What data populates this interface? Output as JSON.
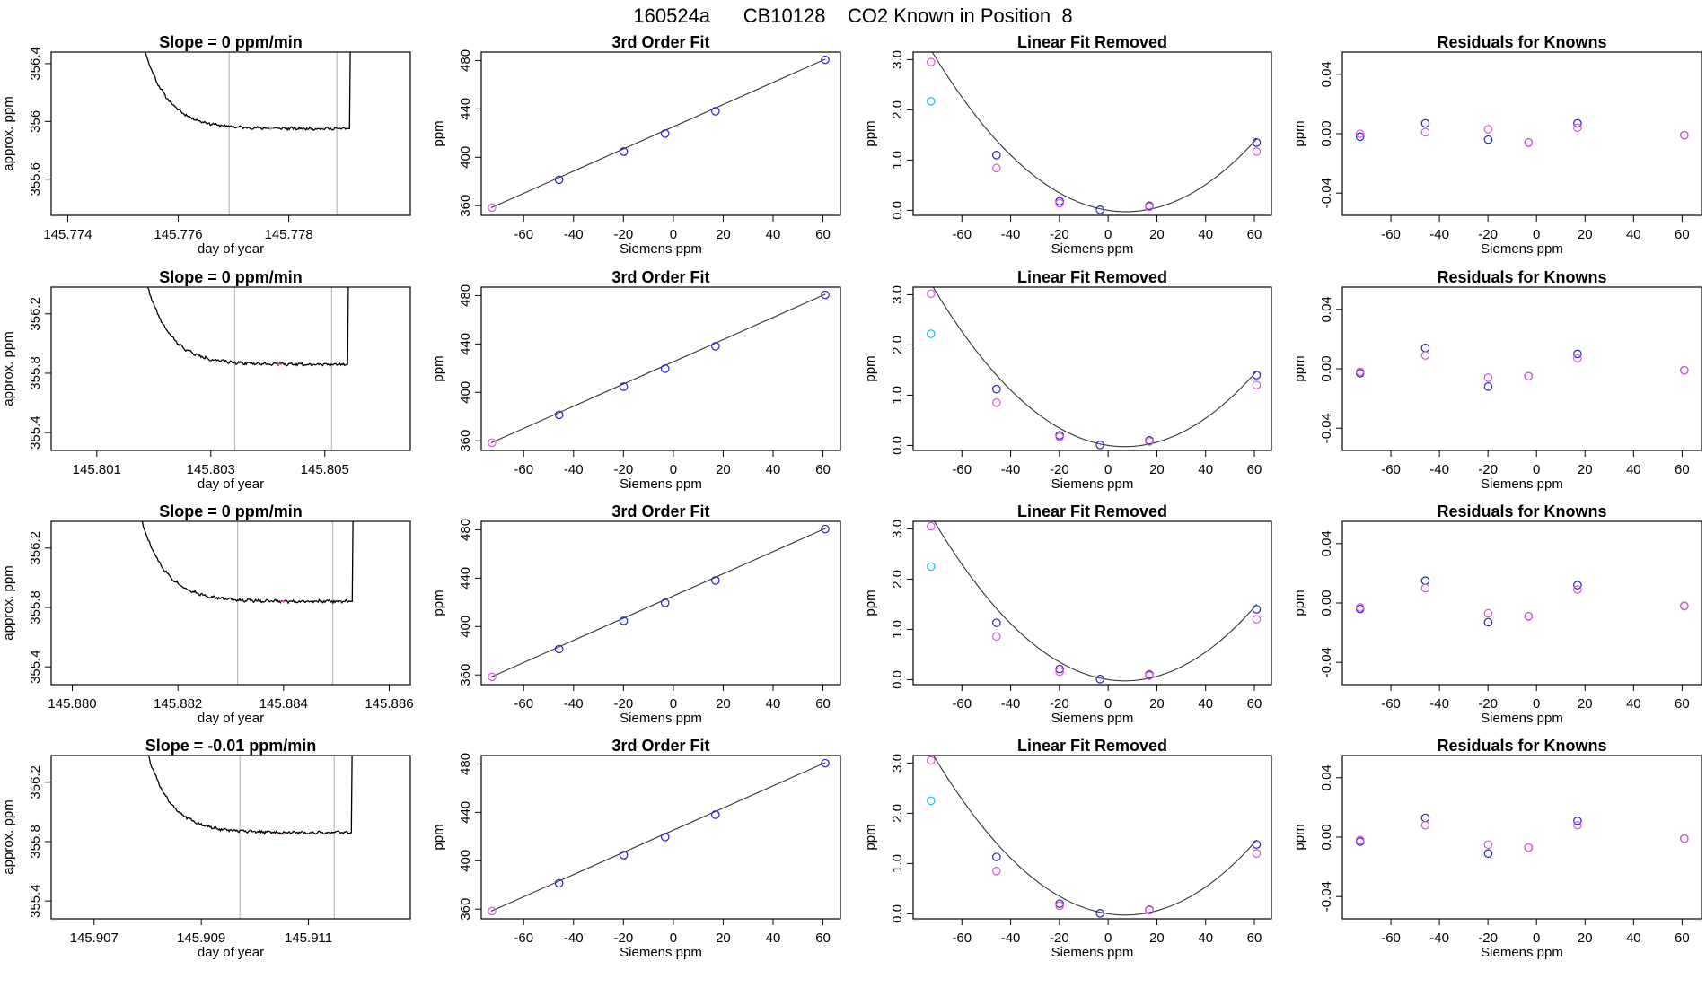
{
  "figure": {
    "title": "160524a      CB10128    CO2 Known in Position  8"
  },
  "colors": {
    "trace": "#000000",
    "fit_line": "#333333",
    "marker": "#ff66cc",
    "vline": "#bbbbbb",
    "points_blue": "#2222cc",
    "points_magenta": "#dd55dd",
    "points_cyan": "#22bbdd"
  },
  "chart_data": [
    {
      "type": "line",
      "row": 1,
      "col": 1,
      "title": "Slope =  0  ppm/min",
      "xlabel": "day of year",
      "ylabel": "approx. ppm",
      "xlim": [
        145.7737,
        145.7802
      ],
      "ylim": [
        355.35,
        356.48
      ],
      "xticks": [
        145.774,
        145.776,
        145.778
      ],
      "yticks": [
        355.6,
        356.0,
        356.4
      ],
      "vlines": [
        145.77692,
        145.77887
      ],
      "x_start": 145.7752,
      "x_end": 145.7791,
      "level": 355.95,
      "start_value": 356.8,
      "decay_minutes": 0.08,
      "noise": 0.008,
      "seed": 11,
      "marker": [
        145.7777,
        355.95
      ]
    },
    {
      "type": "scatter",
      "row": 1,
      "col": 2,
      "title": "3rd Order Fit",
      "xlabel": "Siemens ppm",
      "ylabel": "ppm",
      "xlim": [
        -77,
        67
      ],
      "ylim": [
        352,
        487
      ],
      "xticks": [
        -60,
        -40,
        -20,
        0,
        20,
        40,
        60
      ],
      "yticks": [
        360,
        400,
        440,
        480
      ],
      "line": [
        [
          -73,
          358.3
        ],
        [
          61,
          481.2
        ]
      ],
      "series": [
        {
          "color": "blue",
          "x": [
            -45.8,
            -19.9,
            -3.3,
            16.9,
            60.9
          ],
          "y": [
            381.4,
            404.7,
            419.6,
            438.1,
            480.6
          ]
        },
        {
          "color": "magenta",
          "x": [
            -72.7
          ],
          "y": [
            358.4
          ]
        }
      ]
    },
    {
      "type": "scatter",
      "row": 1,
      "col": 3,
      "title": "Linear Fit Removed",
      "xlabel": "Siemens ppm",
      "ylabel": "ppm",
      "xlim": [
        -80,
        67
      ],
      "ylim": [
        -0.1,
        3.15
      ],
      "xticks": [
        -60,
        -40,
        -20,
        0,
        20,
        40,
        60
      ],
      "yticks": [
        0.0,
        1.0,
        2.0,
        3.0
      ],
      "yticklabels": [
        "0.0",
        "1.0",
        "2.0",
        "3.0"
      ],
      "curve": {
        "a": 0.000503,
        "b": -0.00734,
        "c": 0.0,
        "x0": -73,
        "x1": 61
      },
      "series": [
        {
          "color": "blue",
          "x": [
            -45.8,
            -19.9,
            -3.3,
            16.9,
            60.9
          ],
          "y": [
            1.1,
            0.18,
            0.01,
            0.09,
            1.35
          ]
        },
        {
          "color": "magenta",
          "x": [
            -72.7,
            -45.8,
            -19.9,
            16.9,
            60.9
          ],
          "y": [
            2.95,
            0.84,
            0.14,
            0.07,
            1.17
          ]
        },
        {
          "color": "cyan",
          "x": [
            -72.7
          ],
          "y": [
            2.17
          ]
        }
      ]
    },
    {
      "type": "scatter",
      "row": 1,
      "col": 4,
      "title": "Residuals for Knowns",
      "xlabel": "Siemens ppm",
      "ylabel": "ppm",
      "xlim": [
        -80,
        68
      ],
      "ylim": [
        -0.055,
        0.055
      ],
      "xticks": [
        -60,
        -40,
        -20,
        0,
        20,
        40,
        60
      ],
      "yticks": [
        -0.04,
        0.0,
        0.04
      ],
      "yticklabels": [
        "-0.04",
        "0.00",
        "0.04"
      ],
      "series": [
        {
          "color": "blue",
          "x": [
            -72.7,
            -45.8,
            -19.9,
            -3.3,
            16.9,
            60.9
          ],
          "y": [
            -0.002,
            0.007,
            -0.004,
            -0.006,
            0.007,
            -0.001
          ]
        },
        {
          "color": "magenta",
          "x": [
            -72.7,
            -45.8,
            -19.9,
            -3.3,
            16.9,
            60.9
          ],
          "y": [
            0.0,
            0.001,
            0.003,
            -0.006,
            0.004,
            -0.001
          ]
        }
      ]
    },
    {
      "type": "line",
      "row": 2,
      "col": 1,
      "title": "Slope =  0  ppm/min",
      "xlabel": "day of year",
      "ylabel": "approx. ppm",
      "xlim": [
        145.8002,
        145.8065
      ],
      "ylim": [
        355.28,
        356.38
      ],
      "xticks": [
        145.801,
        145.803,
        145.805
      ],
      "yticks": [
        355.4,
        355.8,
        356.2
      ],
      "vlines": [
        145.80342,
        145.80512
      ],
      "x_start": 145.8017,
      "x_end": 145.8054,
      "level": 355.86,
      "start_value": 356.7,
      "decay_minutes": 0.08,
      "noise": 0.008,
      "seed": 22,
      "marker": [
        145.8042,
        355.86
      ]
    },
    {
      "type": "scatter",
      "row": 2,
      "col": 2,
      "title": "3rd Order Fit",
      "xlabel": "Siemens ppm",
      "ylabel": "ppm",
      "xlim": [
        -77,
        67
      ],
      "ylim": [
        352,
        487
      ],
      "xticks": [
        -60,
        -40,
        -20,
        0,
        20,
        40,
        60
      ],
      "yticks": [
        360,
        400,
        440,
        480
      ],
      "line": [
        [
          -73,
          358.3
        ],
        [
          61,
          481.2
        ]
      ],
      "series": [
        {
          "color": "blue",
          "x": [
            -45.8,
            -19.9,
            -3.3,
            16.9,
            60.9
          ],
          "y": [
            381.4,
            404.7,
            419.6,
            438.1,
            480.6
          ]
        },
        {
          "color": "magenta",
          "x": [
            -72.7
          ],
          "y": [
            358.4
          ]
        }
      ]
    },
    {
      "type": "scatter",
      "row": 2,
      "col": 3,
      "title": "Linear Fit Removed",
      "xlabel": "Siemens ppm",
      "ylabel": "ppm",
      "xlim": [
        -80,
        67
      ],
      "ylim": [
        -0.1,
        3.15
      ],
      "xticks": [
        -60,
        -40,
        -20,
        0,
        20,
        40,
        60
      ],
      "yticks": [
        0.0,
        1.0,
        2.0,
        3.0
      ],
      "yticklabels": [
        "0.0",
        "1.0",
        "2.0",
        "3.0"
      ],
      "curve": {
        "a": 0.000513,
        "b": -0.00701,
        "c": 0.0,
        "x0": -73,
        "x1": 61
      },
      "series": [
        {
          "color": "blue",
          "x": [
            -45.8,
            -19.9,
            -3.3,
            16.9,
            60.9
          ],
          "y": [
            1.12,
            0.2,
            0.01,
            0.1,
            1.4
          ]
        },
        {
          "color": "magenta",
          "x": [
            -72.7,
            -45.8,
            -19.9,
            16.9,
            60.9
          ],
          "y": [
            3.02,
            0.85,
            0.17,
            0.08,
            1.2
          ]
        },
        {
          "color": "cyan",
          "x": [
            -72.7
          ],
          "y": [
            2.22
          ]
        }
      ]
    },
    {
      "type": "scatter",
      "row": 2,
      "col": 4,
      "title": "Residuals for Knowns",
      "xlabel": "Siemens ppm",
      "ylabel": "ppm",
      "xlim": [
        -80,
        68
      ],
      "ylim": [
        -0.055,
        0.055
      ],
      "xticks": [
        -60,
        -40,
        -20,
        0,
        20,
        40,
        60
      ],
      "yticks": [
        -0.04,
        0.0,
        0.04
      ],
      "yticklabels": [
        "-0.04",
        "0.00",
        "0.04"
      ],
      "series": [
        {
          "color": "blue",
          "x": [
            -72.7,
            -45.8,
            -19.9,
            -3.3,
            16.9,
            60.9
          ],
          "y": [
            -0.003,
            0.014,
            -0.012,
            -0.005,
            0.01,
            -0.001
          ]
        },
        {
          "color": "magenta",
          "x": [
            -72.7,
            -45.8,
            -19.9,
            -3.3,
            16.9,
            60.9
          ],
          "y": [
            -0.002,
            0.009,
            -0.006,
            -0.005,
            0.007,
            -0.001
          ]
        }
      ]
    },
    {
      "type": "line",
      "row": 3,
      "col": 1,
      "title": "Slope =  0  ppm/min",
      "xlabel": "day of year",
      "ylabel": "approx. ppm",
      "xlim": [
        145.8796,
        145.8864
      ],
      "ylim": [
        355.28,
        356.38
      ],
      "xticks": [
        145.88,
        145.882,
        145.884,
        145.886
      ],
      "xticklabels": [
        "145.880",
        "145.882",
        "145.884",
        "145.886"
      ],
      "yticks": [
        355.4,
        355.8,
        356.2
      ],
      "vlines": [
        145.88313,
        145.88493
      ],
      "x_start": 145.8811,
      "x_end": 145.8853,
      "level": 355.84,
      "start_value": 356.7,
      "decay_minutes": 0.08,
      "noise": 0.008,
      "seed": 33,
      "marker": [
        145.884,
        355.84
      ]
    },
    {
      "type": "scatter",
      "row": 3,
      "col": 2,
      "title": "3rd Order Fit",
      "xlabel": "Siemens ppm",
      "ylabel": "ppm",
      "xlim": [
        -77,
        67
      ],
      "ylim": [
        352,
        487
      ],
      "xticks": [
        -60,
        -40,
        -20,
        0,
        20,
        40,
        60
      ],
      "yticks": [
        360,
        400,
        440,
        480
      ],
      "line": [
        [
          -73,
          358.3
        ],
        [
          61,
          481.2
        ]
      ],
      "series": [
        {
          "color": "blue",
          "x": [
            -45.8,
            -19.9,
            -3.3,
            16.9,
            60.9
          ],
          "y": [
            381.4,
            404.7,
            419.6,
            438.1,
            480.6
          ]
        },
        {
          "color": "magenta",
          "x": [
            -72.7
          ],
          "y": [
            358.4
          ]
        }
      ]
    },
    {
      "type": "scatter",
      "row": 3,
      "col": 3,
      "title": "Linear Fit Removed",
      "xlabel": "Siemens ppm",
      "ylabel": "ppm",
      "xlim": [
        -80,
        67
      ],
      "ylim": [
        -0.1,
        3.15
      ],
      "xticks": [
        -60,
        -40,
        -20,
        0,
        20,
        40,
        60
      ],
      "yticks": [
        0.0,
        1.0,
        2.0,
        3.0
      ],
      "yticklabels": [
        "0.0",
        "1.0",
        "2.0",
        "3.0"
      ],
      "curve": {
        "a": 0.000519,
        "b": -0.0071,
        "c": 0.0,
        "x0": -73,
        "x1": 61
      },
      "series": [
        {
          "color": "blue",
          "x": [
            -45.8,
            -19.9,
            -3.3,
            16.9,
            60.9
          ],
          "y": [
            1.13,
            0.21,
            0.01,
            0.1,
            1.4
          ]
        },
        {
          "color": "magenta",
          "x": [
            -72.7,
            -45.8,
            -19.9,
            16.9,
            60.9
          ],
          "y": [
            3.05,
            0.86,
            0.16,
            0.08,
            1.2
          ]
        },
        {
          "color": "cyan",
          "x": [
            -72.7
          ],
          "y": [
            2.25
          ]
        }
      ]
    },
    {
      "type": "scatter",
      "row": 3,
      "col": 4,
      "title": "Residuals for Knowns",
      "xlabel": "Siemens ppm",
      "ylabel": "ppm",
      "xlim": [
        -80,
        68
      ],
      "ylim": [
        -0.055,
        0.055
      ],
      "xticks": [
        -60,
        -40,
        -20,
        0,
        20,
        40,
        60
      ],
      "yticks": [
        -0.04,
        0.0,
        0.04
      ],
      "yticklabels": [
        "-0.04",
        "0.00",
        "0.04"
      ],
      "series": [
        {
          "color": "blue",
          "x": [
            -72.7,
            -45.8,
            -19.9,
            -3.3,
            16.9,
            60.9
          ],
          "y": [
            -0.004,
            0.015,
            -0.013,
            -0.009,
            0.012,
            -0.002
          ]
        },
        {
          "color": "magenta",
          "x": [
            -72.7,
            -45.8,
            -19.9,
            -3.3,
            16.9,
            60.9
          ],
          "y": [
            -0.003,
            0.01,
            -0.007,
            -0.009,
            0.009,
            -0.002
          ]
        }
      ]
    },
    {
      "type": "line",
      "row": 4,
      "col": 1,
      "title": "Slope =  -0.01  ppm/min",
      "xlabel": "day of year",
      "ylabel": "approx. ppm",
      "xlim": [
        145.9062,
        145.9129
      ],
      "ylim": [
        355.28,
        356.38
      ],
      "xticks": [
        145.907,
        145.909,
        145.911
      ],
      "yticks": [
        355.4,
        355.8,
        356.2
      ],
      "vlines": [
        145.90972,
        145.91148
      ],
      "x_start": 145.9078,
      "x_end": 145.9118,
      "level": 355.86,
      "start_value": 356.7,
      "decay_minutes": 0.08,
      "noise": 0.008,
      "seed": 44,
      "marker": [
        145.9105,
        355.85
      ]
    },
    {
      "type": "scatter",
      "row": 4,
      "col": 2,
      "title": "3rd Order Fit",
      "xlabel": "Siemens ppm",
      "ylabel": "ppm",
      "xlim": [
        -77,
        67
      ],
      "ylim": [
        352,
        487
      ],
      "xticks": [
        -60,
        -40,
        -20,
        0,
        20,
        40,
        60
      ],
      "yticks": [
        360,
        400,
        440,
        480
      ],
      "line": [
        [
          -73,
          358.3
        ],
        [
          61,
          481.2
        ]
      ],
      "series": [
        {
          "color": "blue",
          "x": [
            -45.8,
            -19.9,
            -3.3,
            16.9,
            60.9
          ],
          "y": [
            381.4,
            404.7,
            419.6,
            438.1,
            480.6
          ]
        },
        {
          "color": "magenta",
          "x": [
            -72.7
          ],
          "y": [
            358.4
          ]
        }
      ]
    },
    {
      "type": "scatter",
      "row": 4,
      "col": 3,
      "title": "Linear Fit Removed",
      "xlabel": "Siemens ppm",
      "ylabel": "ppm",
      "xlim": [
        -80,
        67
      ],
      "ylim": [
        -0.1,
        3.15
      ],
      "xticks": [
        -60,
        -40,
        -20,
        0,
        20,
        40,
        60
      ],
      "yticks": [
        0.0,
        1.0,
        2.0,
        3.0
      ],
      "yticklabels": [
        "0.0",
        "1.0",
        "2.0",
        "3.0"
      ],
      "curve": {
        "a": 0.000513,
        "b": -0.00719,
        "c": 0.0,
        "x0": -73,
        "x1": 61
      },
      "series": [
        {
          "color": "blue",
          "x": [
            -45.8,
            -19.9,
            -3.3,
            16.9,
            60.9
          ],
          "y": [
            1.13,
            0.2,
            0.01,
            0.08,
            1.38
          ]
        },
        {
          "color": "magenta",
          "x": [
            -72.7,
            -45.8,
            -19.9,
            16.9,
            60.9
          ],
          "y": [
            3.05,
            0.85,
            0.16,
            0.07,
            1.2
          ]
        },
        {
          "color": "cyan",
          "x": [
            -72.7
          ],
          "y": [
            2.25
          ]
        }
      ]
    },
    {
      "type": "scatter",
      "row": 4,
      "col": 4,
      "title": "Residuals for Knowns",
      "xlabel": "Siemens ppm",
      "ylabel": "ppm",
      "xlim": [
        -80,
        68
      ],
      "ylim": [
        -0.055,
        0.055
      ],
      "xticks": [
        -60,
        -40,
        -20,
        0,
        20,
        40,
        60
      ],
      "yticks": [
        -0.04,
        0.0,
        0.04
      ],
      "yticklabels": [
        "-0.04",
        "0.00",
        "0.04"
      ],
      "series": [
        {
          "color": "blue",
          "x": [
            -72.7,
            -45.8,
            -19.9,
            -3.3,
            16.9,
            60.9
          ],
          "y": [
            -0.003,
            0.013,
            -0.011,
            -0.007,
            0.011,
            -0.001
          ]
        },
        {
          "color": "magenta",
          "x": [
            -72.7,
            -45.8,
            -19.9,
            -3.3,
            16.9,
            60.9
          ],
          "y": [
            -0.002,
            0.008,
            -0.005,
            -0.007,
            0.008,
            -0.001
          ]
        }
      ]
    }
  ]
}
